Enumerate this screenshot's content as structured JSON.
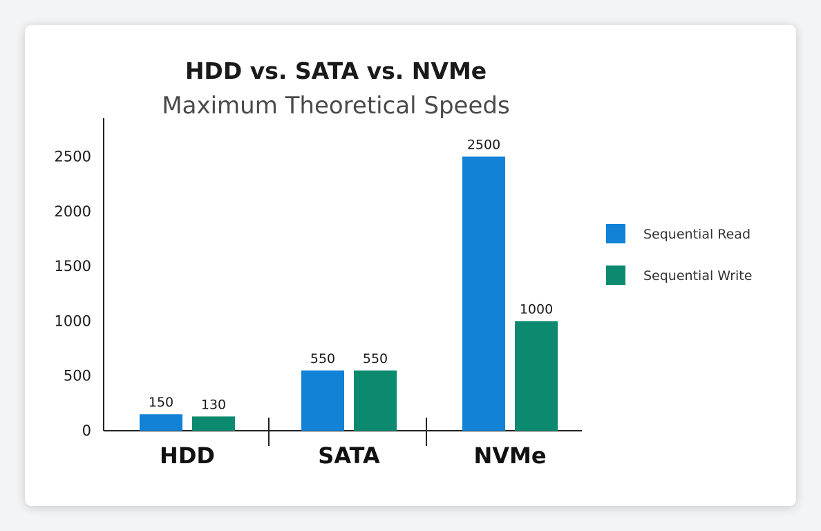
{
  "colors": {
    "read": "#1182d6",
    "write": "#0b8a6f",
    "axis": "#222222"
  },
  "chart_data": {
    "type": "bar",
    "title": "HDD vs. SATA vs. NVMe",
    "subtitle": "Maximum Theoretical Speeds",
    "categories": [
      "HDD",
      "SATA",
      "NVMe"
    ],
    "series": [
      {
        "name": "Sequential Read",
        "values": [
          150,
          550,
          2500
        ]
      },
      {
        "name": "Sequential Write",
        "values": [
          130,
          550,
          1000
        ]
      }
    ],
    "data_labels": [
      [
        "150",
        "550",
        "2500"
      ],
      [
        "130",
        "550",
        "1000"
      ]
    ],
    "yticks": [
      0,
      500,
      1000,
      1500,
      2000,
      2500
    ],
    "ylim": [
      0,
      2850
    ],
    "grid": false,
    "legend_position": "right"
  }
}
